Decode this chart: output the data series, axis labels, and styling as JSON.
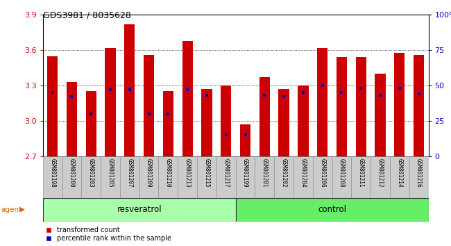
{
  "title": "GDS3981 / 8035628",
  "samples": [
    "GSM801198",
    "GSM801200",
    "GSM801203",
    "GSM801205",
    "GSM801207",
    "GSM801209",
    "GSM801210",
    "GSM801213",
    "GSM801215",
    "GSM801217",
    "GSM801199",
    "GSM801201",
    "GSM801202",
    "GSM801204",
    "GSM801206",
    "GSM801208",
    "GSM801211",
    "GSM801212",
    "GSM801214",
    "GSM801216"
  ],
  "transformed_counts": [
    3.55,
    3.33,
    3.25,
    3.62,
    3.82,
    3.56,
    3.25,
    3.68,
    3.27,
    3.3,
    2.97,
    3.37,
    3.27,
    3.3,
    3.62,
    3.54,
    3.54,
    3.4,
    3.58,
    3.56
  ],
  "percentile_ranks": [
    45,
    42,
    30,
    47,
    47,
    30,
    30,
    47,
    43,
    15,
    15,
    43,
    42,
    45,
    50,
    45,
    48,
    43,
    48,
    44
  ],
  "resveratrol_count": 10,
  "control_count": 10,
  "y_min": 2.7,
  "y_max": 3.9,
  "y_ticks_left": [
    2.7,
    3.0,
    3.3,
    3.6,
    3.9
  ],
  "y_ticks_right": [
    0,
    25,
    50,
    75,
    100
  ],
  "bar_color": "#cc0000",
  "marker_color": "#0000bb",
  "resveratrol_color": "#aaffaa",
  "control_color": "#66ee66",
  "agent_label_color": "#cc6600",
  "group_label_resveratrol": "resveratrol",
  "group_label_control": "control",
  "agent_label": "agent",
  "legend_bar": "transformed count",
  "legend_marker": "percentile rank within the sample",
  "tick_label_color_left": "#cc0000",
  "tick_label_color_right": "#0000bb"
}
